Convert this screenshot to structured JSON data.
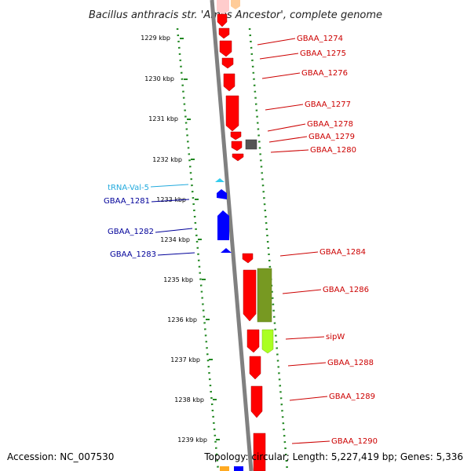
{
  "title": "Bacillus anthracis str. 'Ames Ancestor', complete genome",
  "accession_text": "Accession: NC_007530",
  "topology_text": "Topology: circular; Length: 5,227,419 bp; Genes: 5,336",
  "colors": {
    "forward_gene": "#ff0000",
    "reverse_gene": "#0000ff",
    "trna": "#33ccee",
    "olive": "#779922",
    "lime": "#aaff22",
    "gray_feature": "#555555",
    "backbone": "#808080",
    "dots": "#228822",
    "forward_label": "#cc0000",
    "reverse_label": "#000099",
    "trna_label": "#22aadd"
  },
  "ticks": [
    "1229 kbp",
    "1230 kbp",
    "1231 kbp",
    "1232 kbp",
    "1233 kbp",
    "1234 kbp",
    "1235 kbp",
    "1236 kbp",
    "1237 kbp",
    "1238 kbp",
    "1239 kbp"
  ],
  "forward_labels": [
    "GBAA_1274",
    "GBAA_1275",
    "GBAA_1276",
    "GBAA_1277",
    "GBAA_1278",
    "GBAA_1279",
    "GBAA_1280",
    "GBAA_1284",
    "GBAA_1286",
    "sipW",
    "GBAA_1288",
    "GBAA_1289",
    "GBAA_1290"
  ],
  "reverse_labels": [
    "tRNA-Val-5",
    "GBAA_1281",
    "GBAA_1282",
    "GBAA_1283"
  ]
}
